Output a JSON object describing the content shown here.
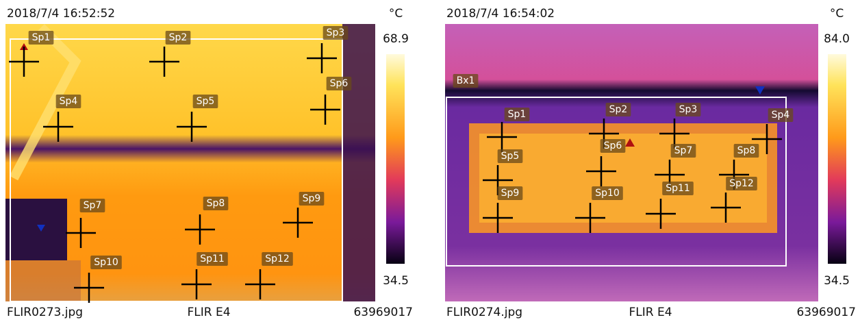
{
  "panels": [
    {
      "timestamp": "2018/7/4 16:52:52",
      "unit": "°C",
      "scale_max": "68.9",
      "scale_min": "34.5",
      "filename": "FLIR0273.jpg",
      "camera": "FLIR E4",
      "serial": "63969017",
      "spots": [
        "Sp1",
        "Sp2",
        "Sp3",
        "Sp4",
        "Sp5",
        "Sp6",
        "Sp7",
        "Sp8",
        "Sp9",
        "Sp10",
        "Sp11",
        "Sp12"
      ]
    },
    {
      "timestamp": "2018/7/4 16:54:02",
      "unit": "°C",
      "scale_max": "84.0",
      "scale_min": "34.5",
      "filename": "FLIR0274.jpg",
      "camera": "FLIR E4",
      "serial": "63969017",
      "box": "Bx1",
      "spots": [
        "Sp1",
        "Sp2",
        "Sp3",
        "Sp4",
        "Sp5",
        "Sp6",
        "Sp7",
        "Sp8",
        "Sp9",
        "Sp10",
        "Sp11",
        "Sp12"
      ]
    }
  ]
}
